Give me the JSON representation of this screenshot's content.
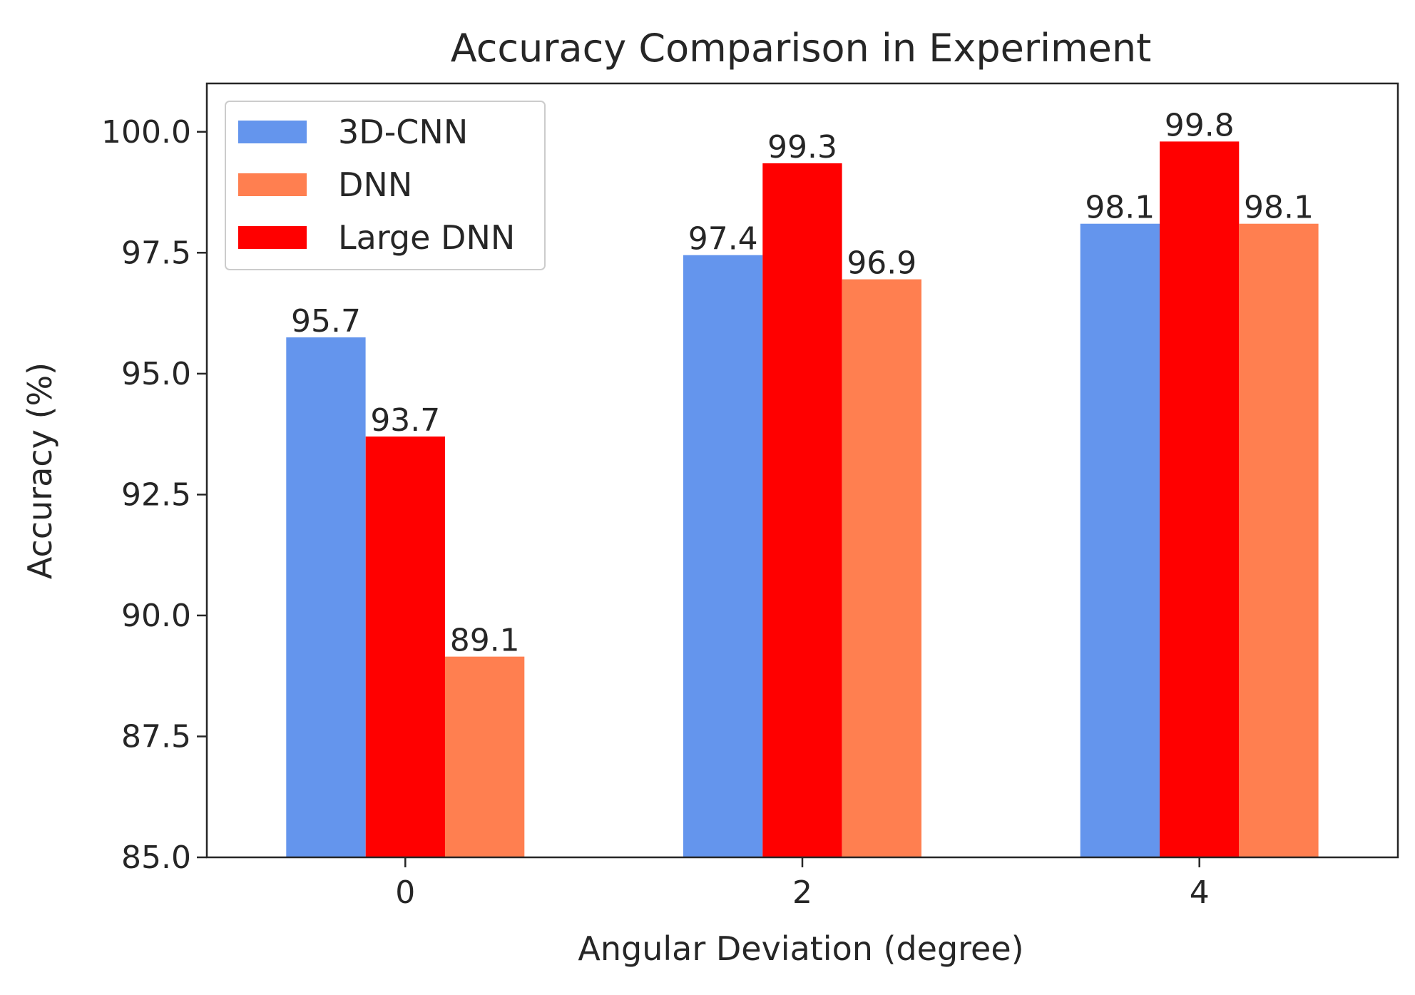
{
  "chart_data": {
    "type": "bar",
    "title": "Accuracy Comparison in Experiment",
    "xlabel": "Angular Deviation (degree)",
    "ylabel": "Accuracy (%)",
    "categories": [
      "0",
      "2",
      "4"
    ],
    "ylim": [
      85.0,
      101.0
    ],
    "yticks": [
      85.0,
      87.5,
      90.0,
      92.5,
      95.0,
      97.5,
      100.0
    ],
    "ytick_labels": [
      "85.0",
      "87.5",
      "90.0",
      "92.5",
      "95.0",
      "97.5",
      "100.0"
    ],
    "grid": false,
    "legend_position": "top-left",
    "legend": [
      "3D-CNN",
      "DNN",
      "Large DNN"
    ],
    "bar_order": [
      "3D-CNN",
      "Large DNN",
      "DNN"
    ],
    "series": [
      {
        "name": "3D-CNN",
        "values": [
          95.75,
          97.45,
          98.1
        ],
        "labels": [
          "95.7",
          "97.4",
          "98.1"
        ],
        "color": "#6495ED"
      },
      {
        "name": "Large DNN",
        "values": [
          93.7,
          99.35,
          99.8
        ],
        "labels": [
          "93.7",
          "99.3",
          "99.8"
        ],
        "color": "#FF0000"
      },
      {
        "name": "DNN",
        "values": [
          89.15,
          96.95,
          98.1
        ],
        "labels": [
          "89.1",
          "96.9",
          "98.1"
        ],
        "color": "#FF7F50"
      }
    ]
  }
}
